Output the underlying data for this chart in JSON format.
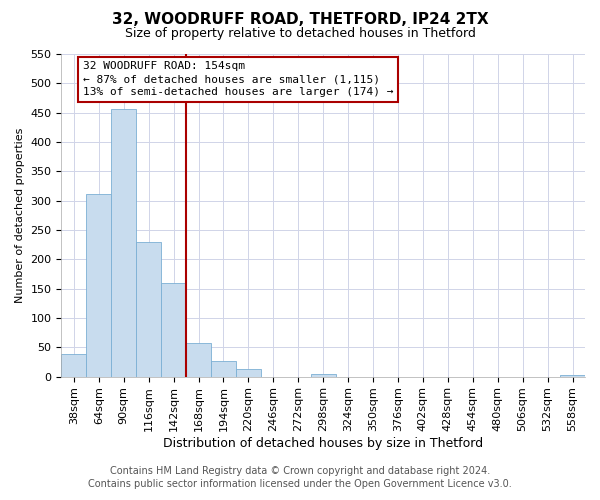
{
  "title": "32, WOODRUFF ROAD, THETFORD, IP24 2TX",
  "subtitle": "Size of property relative to detached houses in Thetford",
  "xlabel": "Distribution of detached houses by size in Thetford",
  "ylabel": "Number of detached properties",
  "footer_line1": "Contains HM Land Registry data © Crown copyright and database right 2024.",
  "footer_line2": "Contains public sector information licensed under the Open Government Licence v3.0.",
  "bin_labels": [
    "38sqm",
    "64sqm",
    "90sqm",
    "116sqm",
    "142sqm",
    "168sqm",
    "194sqm",
    "220sqm",
    "246sqm",
    "272sqm",
    "298sqm",
    "324sqm",
    "350sqm",
    "376sqm",
    "402sqm",
    "428sqm",
    "454sqm",
    "480sqm",
    "506sqm",
    "532sqm",
    "558sqm"
  ],
  "bar_heights": [
    38,
    311,
    457,
    229,
    160,
    57,
    26,
    13,
    0,
    0,
    4,
    0,
    0,
    0,
    0,
    0,
    0,
    0,
    0,
    0,
    2
  ],
  "bar_color": "#c8dcee",
  "bar_edge_color": "#7bafd4",
  "annotation_text_line1": "32 WOODRUFF ROAD: 154sqm",
  "annotation_text_line2": "← 87% of detached houses are smaller (1,115)",
  "annotation_text_line3": "13% of semi-detached houses are larger (174) →",
  "vline_color": "#aa0000",
  "vline_x": 4.5,
  "ylim": [
    0,
    550
  ],
  "yticks": [
    0,
    50,
    100,
    150,
    200,
    250,
    300,
    350,
    400,
    450,
    500,
    550
  ],
  "grid_color": "#d0d4e8",
  "title_fontsize": 11,
  "subtitle_fontsize": 9,
  "ylabel_fontsize": 8,
  "xlabel_fontsize": 9,
  "tick_fontsize": 8,
  "annot_fontsize": 8,
  "footer_fontsize": 7
}
